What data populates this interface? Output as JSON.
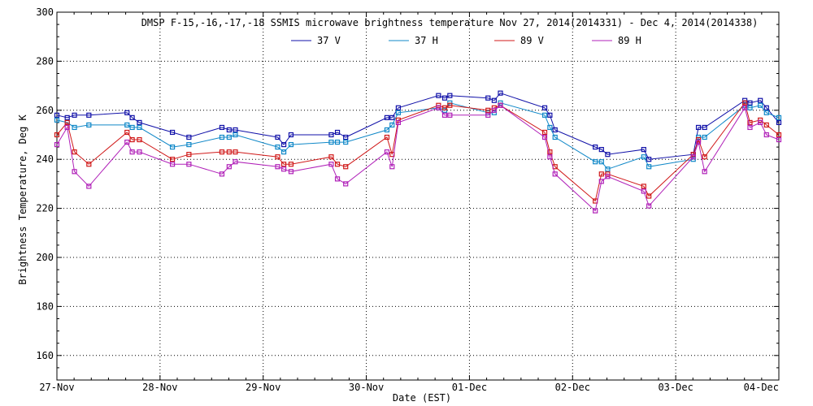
{
  "chart_data": {
    "type": "line",
    "title": "DMSP F-15,-16,-17,-18 SSMIS microwave brightness temperature Nov 27, 2014(2014331) - Dec  4, 2014(2014338)",
    "xlabel": "Date (EST)",
    "ylabel": "Brightness Temperature, Deg K",
    "xlim": [
      0,
      7
    ],
    "ylim": [
      150,
      300
    ],
    "y_ticks": [
      160,
      180,
      200,
      220,
      240,
      260,
      280,
      300
    ],
    "x_ticks": [
      {
        "x": 0,
        "label": "27-Nov"
      },
      {
        "x": 1,
        "label": "28-Nov"
      },
      {
        "x": 2,
        "label": "29-Nov"
      },
      {
        "x": 3,
        "label": "30-Nov"
      },
      {
        "x": 4,
        "label": "01-Dec"
      },
      {
        "x": 5,
        "label": "02-Dec"
      },
      {
        "x": 6,
        "label": "03-Dec"
      },
      {
        "x": 7,
        "label": "04-Dec"
      }
    ],
    "grid": true,
    "legend_position": "top",
    "series": [
      {
        "name": "37 V",
        "color": "#1010a8",
        "x": [
          0.0,
          0.1,
          0.17,
          0.31,
          0.68,
          0.73,
          0.8,
          1.12,
          1.28,
          1.6,
          1.67,
          1.73,
          2.14,
          2.2,
          2.27,
          2.66,
          2.72,
          2.8,
          3.2,
          3.25,
          3.31,
          3.7,
          3.76,
          3.81,
          4.18,
          4.24,
          4.3,
          4.73,
          4.78,
          4.83,
          5.22,
          5.28,
          5.34,
          5.69,
          5.74,
          6.17,
          6.22,
          6.28,
          6.67,
          6.72,
          6.82,
          6.88,
          7.0
        ],
        "values": [
          258,
          257,
          258,
          258,
          259,
          257,
          255,
          251,
          249,
          253,
          252,
          252,
          249,
          246,
          250,
          250,
          251,
          249,
          257,
          257,
          261,
          266,
          265,
          266,
          265,
          264,
          267,
          261,
          258,
          252,
          245,
          244,
          242,
          244,
          240,
          242,
          253,
          253,
          264,
          263,
          264,
          261,
          255
        ]
      },
      {
        "name": "37 H",
        "color": "#1088c8",
        "x": [
          0.0,
          0.1,
          0.17,
          0.31,
          0.68,
          0.73,
          0.8,
          1.12,
          1.28,
          1.6,
          1.67,
          1.73,
          2.14,
          2.2,
          2.27,
          2.66,
          2.72,
          2.8,
          3.2,
          3.25,
          3.31,
          3.7,
          3.76,
          3.81,
          4.18,
          4.24,
          4.3,
          4.73,
          4.78,
          4.83,
          5.22,
          5.28,
          5.34,
          5.69,
          5.74,
          6.17,
          6.22,
          6.28,
          6.67,
          6.72,
          6.82,
          6.88,
          7.0
        ],
        "values": [
          256,
          255,
          253,
          254,
          254,
          253,
          253,
          245,
          246,
          249,
          249,
          250,
          245,
          243,
          246,
          247,
          247,
          247,
          252,
          254,
          259,
          261,
          260,
          263,
          259,
          259,
          263,
          258,
          253,
          249,
          239,
          239,
          236,
          241,
          237,
          240,
          249,
          249,
          262,
          261,
          262,
          259,
          257
        ]
      },
      {
        "name": "89 V",
        "color": "#d01818",
        "x": [
          0.0,
          0.1,
          0.17,
          0.31,
          0.68,
          0.73,
          0.8,
          1.12,
          1.28,
          1.6,
          1.67,
          1.73,
          2.14,
          2.2,
          2.27,
          2.66,
          2.72,
          2.8,
          3.2,
          3.25,
          3.31,
          3.7,
          3.76,
          3.81,
          4.18,
          4.24,
          4.3,
          4.73,
          4.78,
          4.83,
          5.22,
          5.28,
          5.34,
          5.69,
          5.74,
          6.17,
          6.22,
          6.28,
          6.67,
          6.72,
          6.82,
          6.88,
          7.0
        ],
        "values": [
          250,
          255,
          243,
          238,
          251,
          248,
          248,
          240,
          242,
          243,
          243,
          243,
          241,
          238,
          238,
          241,
          238,
          237,
          249,
          242,
          256,
          262,
          261,
          262,
          260,
          261,
          262,
          251,
          243,
          237,
          223,
          234,
          234,
          229,
          225,
          242,
          248,
          241,
          263,
          255,
          256,
          254,
          250
        ]
      },
      {
        "name": "89 H",
        "color": "#b020b8",
        "x": [
          0.0,
          0.1,
          0.17,
          0.31,
          0.68,
          0.73,
          0.8,
          1.12,
          1.28,
          1.6,
          1.67,
          1.73,
          2.14,
          2.2,
          2.27,
          2.66,
          2.72,
          2.8,
          3.2,
          3.25,
          3.31,
          3.7,
          3.76,
          3.81,
          4.18,
          4.24,
          4.3,
          4.73,
          4.78,
          4.83,
          5.22,
          5.28,
          5.34,
          5.69,
          5.74,
          6.17,
          6.22,
          6.28,
          6.67,
          6.72,
          6.82,
          6.88,
          7.0
        ],
        "values": [
          246,
          253,
          235,
          229,
          247,
          243,
          243,
          238,
          238,
          234,
          237,
          239,
          237,
          236,
          235,
          238,
          232,
          230,
          243,
          237,
          255,
          261,
          258,
          258,
          258,
          260,
          262,
          249,
          241,
          234,
          219,
          231,
          233,
          227,
          221,
          241,
          247,
          235,
          261,
          253,
          255,
          250,
          248
        ]
      }
    ]
  }
}
